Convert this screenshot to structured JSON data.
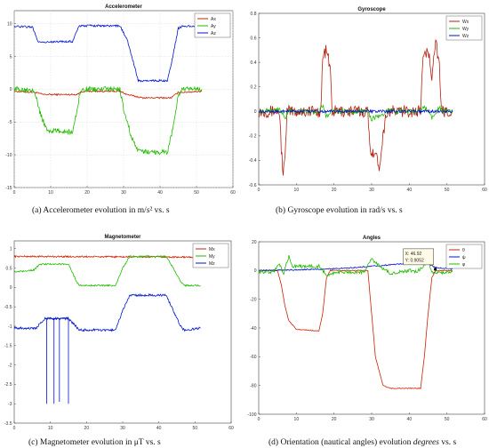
{
  "captions": {
    "a_pre": "(a)  Accelerometer evolution in m/",
    "a_s": "s",
    "a_post": "² vs. s",
    "b": "(b)  Gyroscope evolution in rad/s vs. s",
    "c": "(c)  Magnetometer evolution in μT vs. s",
    "d_pre": "(d)  Orientation (nautical angles) evolution ",
    "d_em": "degrees",
    "d_post": " vs. s"
  },
  "chart_data": [
    {
      "id": "accelerometer",
      "type": "line",
      "title": "Accelerometer",
      "xlim": [
        0,
        60
      ],
      "ylim": [
        -15,
        12
      ],
      "xticks": [
        0,
        10,
        20,
        30,
        40,
        50,
        60
      ],
      "yticks": [
        -15,
        -10,
        -5,
        0,
        5,
        10
      ],
      "grid": true,
      "legend": "top-right",
      "series": [
        {
          "name": "Ax",
          "color": "#cc2200",
          "noise": 0.12,
          "points": [
            [
              0,
              -0.3
            ],
            [
              6,
              -0.5
            ],
            [
              8,
              -0.8
            ],
            [
              17,
              -0.8
            ],
            [
              19,
              -0.3
            ],
            [
              29,
              -0.3
            ],
            [
              31,
              -0.8
            ],
            [
              35,
              -1.3
            ],
            [
              43,
              -1.3
            ],
            [
              45,
              -0.5
            ],
            [
              51.5,
              -0.3
            ]
          ]
        },
        {
          "name": "Ay",
          "color": "#22bb00",
          "noise": 0.4,
          "points": [
            [
              0,
              0
            ],
            [
              5.5,
              0
            ],
            [
              7,
              -3.5
            ],
            [
              9,
              -6.3
            ],
            [
              16,
              -6.5
            ],
            [
              17,
              -4
            ],
            [
              18,
              -0.5
            ],
            [
              19,
              0
            ],
            [
              29,
              0
            ],
            [
              30,
              -3
            ],
            [
              32,
              -7
            ],
            [
              34,
              -9.5
            ],
            [
              42,
              -9.6
            ],
            [
              43.5,
              -6
            ],
            [
              45,
              -1
            ],
            [
              46,
              0
            ],
            [
              51.5,
              0
            ]
          ]
        },
        {
          "name": "Az",
          "color": "#0015cc",
          "noise": 0.15,
          "points": [
            [
              0,
              9.6
            ],
            [
              5,
              9.5
            ],
            [
              6.5,
              7.3
            ],
            [
              8,
              7.2
            ],
            [
              16,
              7.3
            ],
            [
              17,
              8.8
            ],
            [
              18,
              9.7
            ],
            [
              29,
              9.7
            ],
            [
              31,
              7.5
            ],
            [
              33,
              3.5
            ],
            [
              34,
              1.3
            ],
            [
              42,
              1.3
            ],
            [
              43.5,
              5
            ],
            [
              45,
              9.3
            ],
            [
              46,
              9.6
            ],
            [
              51.5,
              9.6
            ]
          ]
        }
      ]
    },
    {
      "id": "gyroscope",
      "type": "line",
      "title": "Gyroscope",
      "xlim": [
        0,
        60
      ],
      "ylim": [
        -0.6,
        0.8
      ],
      "xticks": [
        0,
        10,
        20,
        30,
        40,
        50,
        60
      ],
      "yticks": [
        -0.6,
        -0.4,
        -0.2,
        0,
        0.2,
        0.4,
        0.6,
        0.8
      ],
      "grid": false,
      "legend": "top-right",
      "series": [
        {
          "name": "Wx",
          "color": "#b52010",
          "noise": 0.05,
          "points": [
            [
              0,
              0
            ],
            [
              5.5,
              0
            ],
            [
              6,
              -0.3
            ],
            [
              6.5,
              -0.5
            ],
            [
              7,
              -0.4
            ],
            [
              7.5,
              0
            ],
            [
              16.5,
              0
            ],
            [
              17,
              0.45
            ],
            [
              18,
              0.5
            ],
            [
              19,
              0.35
            ],
            [
              19.5,
              0
            ],
            [
              29,
              0
            ],
            [
              29.5,
              -0.3
            ],
            [
              31,
              -0.35
            ],
            [
              32,
              -0.45
            ],
            [
              33,
              -0.2
            ],
            [
              34,
              0
            ],
            [
              43,
              0
            ],
            [
              43.5,
              0.4
            ],
            [
              45,
              0.5
            ],
            [
              46,
              0.3
            ],
            [
              47,
              0.6
            ],
            [
              48,
              0.35
            ],
            [
              48.5,
              0
            ],
            [
              51.5,
              0
            ]
          ]
        },
        {
          "name": "Wy",
          "color": "#22bb00",
          "noise": 0.02,
          "points": [
            [
              0,
              0
            ],
            [
              5.5,
              0.02
            ],
            [
              7,
              -0.05
            ],
            [
              8,
              0
            ],
            [
              16,
              0
            ],
            [
              17,
              0.05
            ],
            [
              18,
              -0.05
            ],
            [
              19,
              0
            ],
            [
              29,
              0
            ],
            [
              30,
              -0.06
            ],
            [
              33,
              -0.03
            ],
            [
              34,
              0
            ],
            [
              43,
              0
            ],
            [
              44,
              0.04
            ],
            [
              46,
              -0.05
            ],
            [
              48,
              0.03
            ],
            [
              49,
              0
            ],
            [
              51.5,
              0
            ]
          ]
        },
        {
          "name": "Wz",
          "color": "#0015cc",
          "noise": 0.012,
          "points": [
            [
              0,
              0
            ],
            [
              51.5,
              0
            ]
          ]
        }
      ]
    },
    {
      "id": "magnetometer",
      "type": "line",
      "title": "Magnetometer",
      "xlim": [
        0,
        60
      ],
      "ylim": [
        -3.5,
        1.2
      ],
      "xticks": [
        0,
        10,
        20,
        30,
        40,
        50,
        60
      ],
      "yticks": [
        -3.5,
        -3,
        -2.5,
        -2,
        -1.5,
        -1,
        -0.5,
        0,
        0.5,
        1
      ],
      "grid": false,
      "legend": "top-right",
      "series": [
        {
          "name": "Mx",
          "color": "#cc2200",
          "noise": 0.02,
          "points": [
            [
              0,
              0.8
            ],
            [
              51.5,
              0.78
            ]
          ]
        },
        {
          "name": "My",
          "color": "#22bb00",
          "noise": 0.02,
          "points": [
            [
              0,
              0.4
            ],
            [
              5.5,
              0.45
            ],
            [
              7,
              0.6
            ],
            [
              15,
              0.6
            ],
            [
              17,
              0.2
            ],
            [
              18,
              0.05
            ],
            [
              28,
              0.05
            ],
            [
              30,
              0.5
            ],
            [
              32,
              0.8
            ],
            [
              42,
              0.8
            ],
            [
              44,
              0.5
            ],
            [
              46,
              0.15
            ],
            [
              47,
              0.05
            ],
            [
              51.5,
              0.05
            ]
          ]
        },
        {
          "name": "Mz",
          "color": "#0015cc",
          "noise": 0.03,
          "points": [
            [
              0,
              -1.05
            ],
            [
              6,
              -1.05
            ],
            [
              7.5,
              -0.9
            ],
            [
              8.5,
              -0.8
            ],
            [
              15,
              -0.8
            ],
            [
              17,
              -1.0
            ],
            [
              18,
              -1.1
            ],
            [
              28,
              -1.1
            ],
            [
              30,
              -0.6
            ],
            [
              32,
              -0.2
            ],
            [
              42,
              -0.2
            ],
            [
              44,
              -0.6
            ],
            [
              46,
              -1.0
            ],
            [
              47,
              -1.1
            ],
            [
              51.5,
              -1.05
            ]
          ]
        },
        {
          "name": "",
          "color": "#0015cc",
          "noise": 0,
          "points": [
            [
              9,
              -0.8
            ],
            [
              9,
              -3.0
            ],
            [
              9,
              -0.8
            ],
            [
              11,
              -0.8
            ],
            [
              11,
              -3.0
            ],
            [
              11,
              -0.8
            ],
            [
              12.5,
              -0.8
            ],
            [
              12.5,
              -2.95
            ],
            [
              12.5,
              -0.8
            ],
            [
              15,
              -0.8
            ],
            [
              15,
              -3.0
            ],
            [
              15,
              -0.8
            ]
          ]
        }
      ]
    },
    {
      "id": "angles",
      "type": "line",
      "title": "Angles",
      "xlim": [
        0,
        60
      ],
      "ylim": [
        -100,
        20
      ],
      "xticks": [
        0,
        10,
        20,
        30,
        40,
        50,
        60
      ],
      "yticks": [
        -100,
        -80,
        -60,
        -40,
        -20,
        0,
        20
      ],
      "grid": false,
      "legend": "top-right",
      "datatip": {
        "x_label": "X: 46.92",
        "y_label": "Y: 0.9052",
        "x": 46.92,
        "y": 0.9052
      },
      "series": [
        {
          "name": "θ",
          "color": "#cc2200",
          "noise": 0.3,
          "points": [
            [
              0,
              0
            ],
            [
              5,
              0
            ],
            [
              6,
              -10
            ],
            [
              7,
              -25
            ],
            [
              8,
              -35
            ],
            [
              10,
              -41
            ],
            [
              16,
              -42
            ],
            [
              17,
              -30
            ],
            [
              18,
              -5
            ],
            [
              19,
              0
            ],
            [
              29,
              0
            ],
            [
              30,
              -30
            ],
            [
              31,
              -60
            ],
            [
              33,
              -80
            ],
            [
              35,
              -82
            ],
            [
              43,
              -82
            ],
            [
              44,
              -60
            ],
            [
              45,
              -30
            ],
            [
              46,
              -5
            ],
            [
              47,
              0
            ],
            [
              51.5,
              0
            ]
          ]
        },
        {
          "name": "ψ",
          "color": "#0015cc",
          "noise": 0.4,
          "points": [
            [
              0,
              0
            ],
            [
              10,
              0.5
            ],
            [
              18,
              1
            ],
            [
              25,
              2
            ],
            [
              30,
              3
            ],
            [
              35,
              4
            ],
            [
              40,
              5
            ],
            [
              45,
              5
            ],
            [
              47,
              2
            ],
            [
              51.5,
              1
            ]
          ]
        },
        {
          "name": "φ",
          "color": "#22bb00",
          "noise": 1.2,
          "points": [
            [
              0,
              -1
            ],
            [
              4,
              -1
            ],
            [
              5.5,
              5
            ],
            [
              6.5,
              -3
            ],
            [
              8,
              10
            ],
            [
              9,
              3
            ],
            [
              16,
              3
            ],
            [
              18,
              -3
            ],
            [
              22,
              -1
            ],
            [
              28,
              -1
            ],
            [
              30,
              8
            ],
            [
              32,
              3
            ],
            [
              35,
              -2
            ],
            [
              40,
              0
            ],
            [
              42,
              -1
            ],
            [
              44,
              4
            ],
            [
              45,
              8
            ],
            [
              46,
              -2
            ],
            [
              51.5,
              -1
            ]
          ]
        }
      ]
    }
  ]
}
